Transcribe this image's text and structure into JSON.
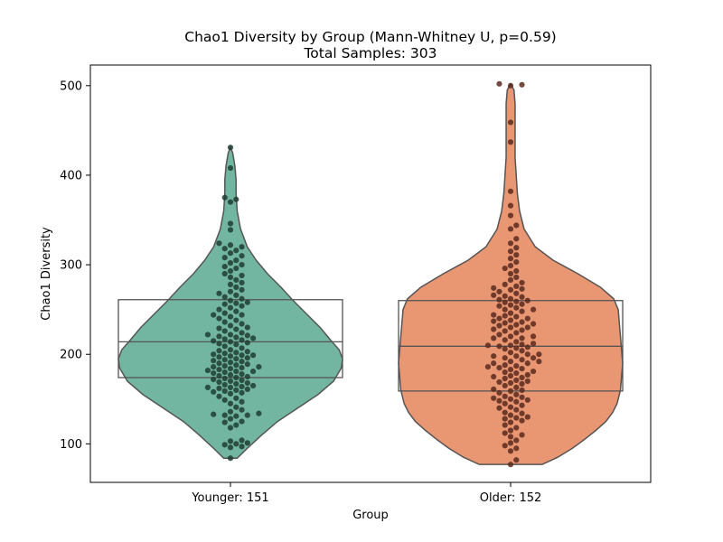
{
  "chart_data": {
    "type": "violin",
    "title": "Chao1 Diversity by Group (Mann-Whitney U, p=0.59)",
    "subtitle": "Total Samples: 303",
    "xlabel": "Group",
    "ylabel": "Chao1 Diversity",
    "ylim": [
      57,
      523
    ],
    "yticks": [
      100,
      200,
      300,
      400,
      500
    ],
    "grid": false,
    "categories": [
      "Younger: 151",
      "Older: 152"
    ],
    "groups": [
      {
        "category": "Younger: 151",
        "n": 151,
        "fill_color": "#72b6a1",
        "point_color": "#1f3d33",
        "box": {
          "q1": 174,
          "median": 214,
          "q3": 261
        },
        "range": [
          84,
          431
        ],
        "density": [
          [
            84,
            0.06
          ],
          [
            95,
            0.15
          ],
          [
            110,
            0.28
          ],
          [
            125,
            0.42
          ],
          [
            140,
            0.6
          ],
          [
            155,
            0.78
          ],
          [
            170,
            0.92
          ],
          [
            185,
            0.99
          ],
          [
            195,
            1.0
          ],
          [
            205,
            0.97
          ],
          [
            215,
            0.9
          ],
          [
            230,
            0.8
          ],
          [
            245,
            0.68
          ],
          [
            260,
            0.56
          ],
          [
            275,
            0.45
          ],
          [
            290,
            0.33
          ],
          [
            305,
            0.23
          ],
          [
            320,
            0.15
          ],
          [
            340,
            0.09
          ],
          [
            360,
            0.06
          ],
          [
            380,
            0.05
          ],
          [
            395,
            0.05
          ],
          [
            410,
            0.04
          ],
          [
            425,
            0.02
          ],
          [
            431,
            0.0
          ]
        ],
        "values": [
          84,
          96,
          97,
          99,
          100,
          101,
          103,
          104,
          118,
          121,
          124,
          125,
          128,
          131,
          132,
          132,
          133,
          134,
          136,
          141,
          145,
          147,
          149,
          151,
          153,
          156,
          157,
          158,
          159,
          160,
          161,
          162,
          163,
          164,
          165,
          166,
          167,
          168,
          169,
          170,
          171,
          172,
          173,
          174,
          175,
          176,
          177,
          178,
          179,
          180,
          181,
          182,
          183,
          184,
          185,
          186,
          187,
          188,
          189,
          190,
          191,
          192,
          193,
          194,
          195,
          196,
          197,
          198,
          199,
          200,
          201,
          202,
          203,
          204,
          205,
          207,
          209,
          211,
          212,
          213,
          214,
          215,
          216,
          217,
          218,
          219,
          220,
          221,
          222,
          224,
          226,
          228,
          229,
          230,
          232,
          234,
          236,
          238,
          240,
          242,
          244,
          246,
          248,
          250,
          252,
          254,
          256,
          258,
          260,
          262,
          264,
          266,
          268,
          270,
          272,
          275,
          278,
          280,
          283,
          286,
          288,
          290,
          293,
          296,
          298,
          300,
          302,
          305,
          308,
          310,
          313,
          316,
          318,
          320,
          322,
          324,
          339,
          346,
          370,
          373,
          375,
          408,
          431,
          138,
          186,
          222,
          244,
          199,
          257,
          181,
          163
        ]
      },
      {
        "category": "Older: 152",
        "n": 152,
        "fill_color": "#e99673",
        "point_color": "#5a2a1f",
        "box": {
          "q1": 159,
          "median": 209,
          "q3": 260
        },
        "range": [
          77,
          502
        ],
        "density": [
          [
            77,
            0.28
          ],
          [
            85,
            0.42
          ],
          [
            95,
            0.55
          ],
          [
            105,
            0.66
          ],
          [
            115,
            0.76
          ],
          [
            125,
            0.85
          ],
          [
            135,
            0.91
          ],
          [
            145,
            0.95
          ],
          [
            160,
            0.98
          ],
          [
            175,
            0.99
          ],
          [
            190,
            1.0
          ],
          [
            205,
            0.99
          ],
          [
            220,
            0.98
          ],
          [
            235,
            0.97
          ],
          [
            250,
            0.96
          ],
          [
            262,
            0.92
          ],
          [
            275,
            0.8
          ],
          [
            290,
            0.6
          ],
          [
            305,
            0.38
          ],
          [
            320,
            0.22
          ],
          [
            340,
            0.12
          ],
          [
            360,
            0.08
          ],
          [
            380,
            0.06
          ],
          [
            400,
            0.05
          ],
          [
            420,
            0.04
          ],
          [
            440,
            0.04
          ],
          [
            460,
            0.04
          ],
          [
            480,
            0.04
          ],
          [
            495,
            0.03
          ],
          [
            502,
            0.0
          ]
        ],
        "values": [
          77,
          82,
          92,
          95,
          98,
          101,
          104,
          108,
          112,
          115,
          118,
          121,
          124,
          126,
          128,
          129,
          130,
          132,
          135,
          138,
          141,
          143,
          145,
          147,
          149,
          151,
          153,
          155,
          157,
          159,
          161,
          163,
          165,
          167,
          169,
          171,
          173,
          175,
          177,
          179,
          181,
          183,
          185,
          186,
          187,
          188,
          190,
          192,
          194,
          196,
          198,
          200,
          202,
          204,
          206,
          207,
          208,
          209,
          210,
          212,
          214,
          216,
          218,
          220,
          222,
          224,
          226,
          228,
          230,
          232,
          233,
          234,
          235,
          236,
          238,
          240,
          242,
          244,
          246,
          248,
          250,
          252,
          254,
          256,
          258,
          259,
          260,
          261,
          262,
          264,
          266,
          268,
          270,
          272,
          274,
          276,
          278,
          280,
          283,
          286,
          290,
          293,
          296,
          299,
          303,
          307,
          311,
          315,
          319,
          324,
          329,
          340,
          344,
          355,
          366,
          382,
          437,
          459,
          500,
          501,
          502,
          110,
          134,
          150,
          168,
          184,
          196,
          211,
          227,
          243,
          255,
          273,
          140,
          160,
          180,
          200,
          220,
          240,
          170,
          190,
          210,
          230,
          250,
          265,
          148,
          176,
          198,
          218,
          237,
          152,
          174,
          192
        ]
      }
    ]
  }
}
